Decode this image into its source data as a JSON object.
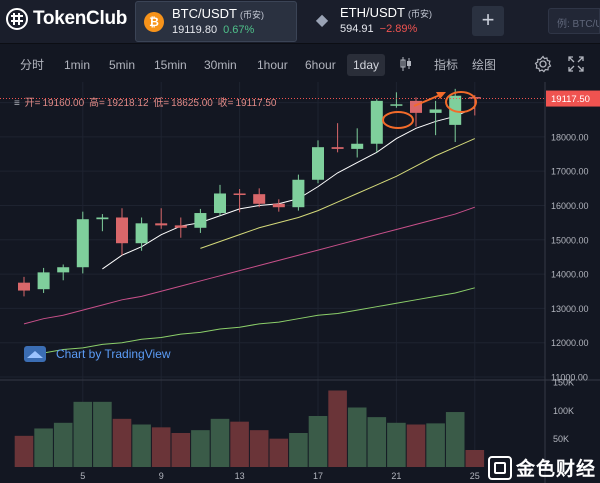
{
  "header": {
    "logo_text": "TokenClub",
    "tickers": [
      {
        "symbol": "BTC/USDT",
        "exchange": "(币安)",
        "price": "19119.80",
        "change": "0.67%",
        "icon": "₿"
      },
      {
        "symbol": "ETH/USDT",
        "exchange": "(币安)",
        "price": "594.91",
        "change": "−2.89%",
        "icon": "◆"
      }
    ],
    "add_label": "+",
    "search_placeholder": "例: BTC/USDT"
  },
  "toolbar": {
    "timeframes": [
      "分时",
      "1min",
      "5min",
      "15min",
      "30min",
      "1hour",
      "6hour",
      "1day"
    ],
    "selected": "1day",
    "indicators_label": "指标",
    "draw_label": "绘图"
  },
  "ohlc": {
    "open_label": "开=",
    "open": "19160.00",
    "high_label": "高=",
    "high": "19218.12",
    "low_label": "低=",
    "low": "18625.00",
    "close_label": "收=",
    "close": "19117.50"
  },
  "tv_label": "Chart by TradingView",
  "watermark_text": "金色财经",
  "colors": {
    "up": "#7fcf9c",
    "down": "#d9676a",
    "ma5": "#ffffff",
    "ma10": "#d4d97a",
    "ma30": "#c8508a",
    "ma60": "#8ccf6a",
    "annotation": "#f26b2a",
    "last_price_bg": "#ef5350"
  },
  "chart_data": {
    "type": "candlestick",
    "x_tick_labels": [
      "5",
      "9",
      "13",
      "17",
      "21",
      "25"
    ],
    "y_tick_labels": [
      "11000.00",
      "12000.00",
      "13000.00",
      "14000.00",
      "15000.00",
      "16000.00",
      "17000.00",
      "18000.00",
      "19000.00"
    ],
    "ylim": [
      11000,
      19600
    ],
    "last_price": "19117.50",
    "candles": [
      {
        "day": 1,
        "open": 13750,
        "high": 13920,
        "low": 13350,
        "close": 13520
      },
      {
        "day": 2,
        "open": 13560,
        "high": 14180,
        "low": 13450,
        "close": 14050
      },
      {
        "day": 3,
        "open": 14050,
        "high": 14280,
        "low": 13820,
        "close": 14200
      },
      {
        "day": 4,
        "open": 14200,
        "high": 15820,
        "low": 14020,
        "close": 15600
      },
      {
        "day": 5,
        "open": 15600,
        "high": 15750,
        "low": 15250,
        "close": 15650
      },
      {
        "day": 6,
        "open": 15650,
        "high": 15920,
        "low": 14550,
        "close": 14900
      },
      {
        "day": 7,
        "open": 14900,
        "high": 15650,
        "low": 14680,
        "close": 15480
      },
      {
        "day": 8,
        "open": 15480,
        "high": 15920,
        "low": 15320,
        "close": 15420
      },
      {
        "day": 9,
        "open": 15420,
        "high": 15650,
        "low": 15060,
        "close": 15350
      },
      {
        "day": 10,
        "open": 15350,
        "high": 15900,
        "low": 15200,
        "close": 15780
      },
      {
        "day": 11,
        "open": 15780,
        "high": 16600,
        "low": 15700,
        "close": 16350
      },
      {
        "day": 12,
        "open": 16350,
        "high": 16480,
        "low": 15800,
        "close": 16330
      },
      {
        "day": 13,
        "open": 16330,
        "high": 16500,
        "low": 15950,
        "close": 16050
      },
      {
        "day": 14,
        "open": 16050,
        "high": 16180,
        "low": 15820,
        "close": 15950
      },
      {
        "day": 15,
        "open": 15950,
        "high": 16900,
        "low": 15850,
        "close": 16750
      },
      {
        "day": 16,
        "open": 16750,
        "high": 17900,
        "low": 16650,
        "close": 17700
      },
      {
        "day": 17,
        "open": 17700,
        "high": 18400,
        "low": 17550,
        "close": 17650
      },
      {
        "day": 18,
        "open": 17650,
        "high": 18250,
        "low": 17400,
        "close": 17800
      },
      {
        "day": 19,
        "open": 17800,
        "high": 19100,
        "low": 17550,
        "close": 19050
      },
      {
        "day": 20,
        "open": 18950,
        "high": 19300,
        "low": 18850,
        "close": 18950
      },
      {
        "day": 21,
        "open": 19050,
        "high": 19150,
        "low": 18300,
        "close": 18700
      },
      {
        "day": 22,
        "open": 18700,
        "high": 19050,
        "low": 18050,
        "close": 18800
      },
      {
        "day": 23,
        "open": 18350,
        "high": 19400,
        "low": 17850,
        "close": 19200
      },
      {
        "day": 24,
        "open": 19160,
        "high": 19218,
        "low": 18625,
        "close": 19117.5
      }
    ],
    "ma": {
      "ma5": [
        null,
        null,
        null,
        null,
        14150,
        14550,
        14800,
        15150,
        15400,
        15500,
        15700,
        15900,
        16000,
        16050,
        16200,
        16550,
        16950,
        17250,
        17550,
        17950,
        18250,
        18450,
        18600,
        18850
      ],
      "ma10": [
        null,
        null,
        null,
        null,
        null,
        null,
        null,
        null,
        null,
        14750,
        14950,
        15150,
        15350,
        15500,
        15650,
        15850,
        16100,
        16350,
        16600,
        16850,
        17150,
        17450,
        17700,
        17950
      ],
      "ma30": [
        12550,
        12700,
        12800,
        12950,
        13100,
        13250,
        13350,
        13500,
        13650,
        13800,
        13950,
        14100,
        14250,
        14400,
        14550,
        14700,
        14850,
        15000,
        15150,
        15300,
        15450,
        15600,
        15750,
        15950
      ],
      "ma60": [
        11650,
        11700,
        11800,
        11850,
        11950,
        12000,
        12100,
        12150,
        12250,
        12300,
        12400,
        12450,
        12550,
        12600,
        12700,
        12800,
        12850,
        12950,
        13050,
        13150,
        13250,
        13350,
        13450,
        13600
      ]
    },
    "volume": {
      "y_tick_labels": [
        "50K",
        "100K",
        "150K"
      ],
      "ylim": [
        0,
        150000
      ],
      "values": [
        55000,
        68000,
        78000,
        115000,
        115000,
        85000,
        75000,
        70000,
        60000,
        65000,
        85000,
        80000,
        65000,
        50000,
        60000,
        90000,
        135000,
        105000,
        88000,
        78000,
        75000,
        77000,
        97000,
        30000
      ]
    }
  }
}
